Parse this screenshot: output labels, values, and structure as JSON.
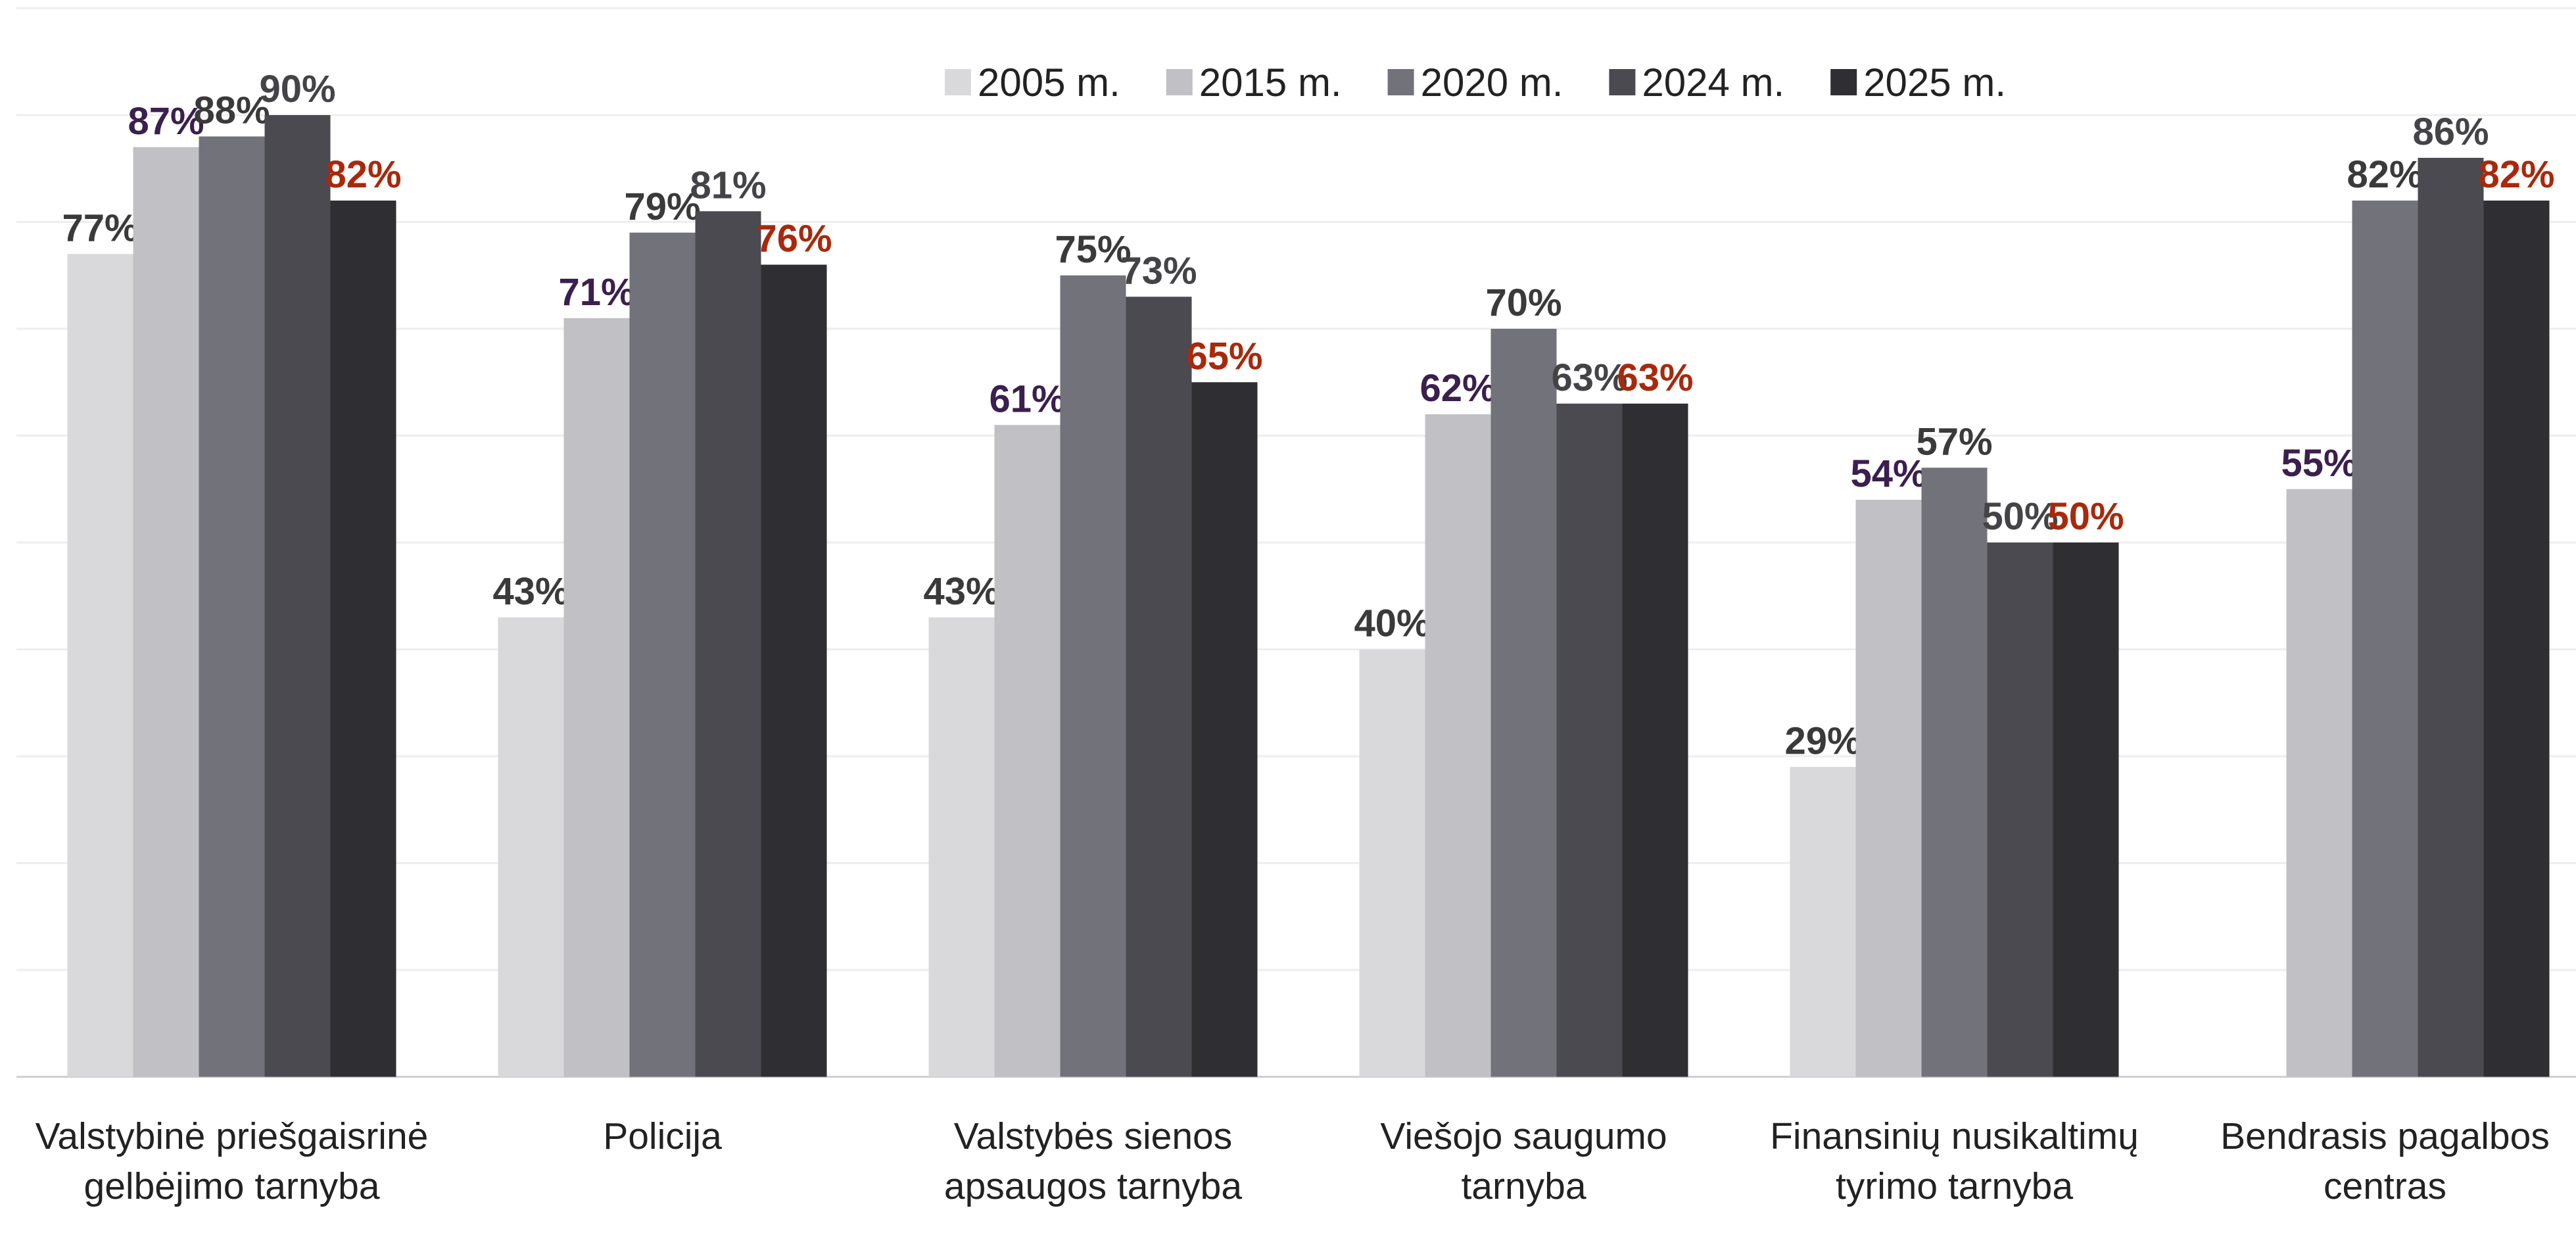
{
  "chart_data": {
    "type": "bar",
    "categories": [
      "Valstybinė priešgaisrinė gelbėjimo tarnyba",
      "Policija",
      "Valstybės sienos apsaugos tarnyba",
      "Viešojo saugumo tarnyba",
      "Finansinių nusikaltimų tyrimo tarnyba",
      "Bendrasis pagalbos centras"
    ],
    "series": [
      {
        "name": "2005 m.",
        "color": "#d9d9db",
        "label_color": "#3a3a3a",
        "values": [
          77,
          43,
          43,
          40,
          29,
          null
        ],
        "value_labels": [
          "77%",
          "43%",
          "43%",
          "40%",
          "29%",
          null
        ]
      },
      {
        "name": "2015 m.",
        "color": "#c1c0c4",
        "label_color": "#3b1f4e",
        "values": [
          87,
          71,
          61,
          62,
          54,
          55
        ],
        "value_labels": [
          "87%",
          "71%",
          "61%",
          "62%",
          "54%",
          "55%"
        ]
      },
      {
        "name": "2020 m.",
        "color": "#72727a",
        "label_color": "#3a3a3a",
        "values": [
          88,
          79,
          75,
          70,
          57,
          82
        ],
        "value_labels": [
          "88%",
          "79%",
          "75%",
          "70%",
          "57%",
          "82%"
        ]
      },
      {
        "name": "2024 m.",
        "color": "#4a4a50",
        "label_color": "#444448",
        "values": [
          90,
          81,
          73,
          63,
          50,
          86
        ],
        "value_labels": [
          "90%",
          "81%",
          "73%",
          "63%",
          "50%",
          "86%"
        ]
      },
      {
        "name": "2025 m.",
        "color": "#2e2e33",
        "label_color": "#a8290c",
        "values": [
          82,
          76,
          65,
          63,
          50,
          82
        ],
        "value_labels": [
          "82%",
          "76%",
          "65%",
          "63%",
          "50%",
          "82%"
        ]
      }
    ],
    "ylim": [
      0,
      100
    ],
    "yticks": [
      0,
      10,
      20,
      30,
      40,
      50,
      60,
      70,
      80,
      90,
      100
    ],
    "grid": true,
    "legend": "top"
  }
}
